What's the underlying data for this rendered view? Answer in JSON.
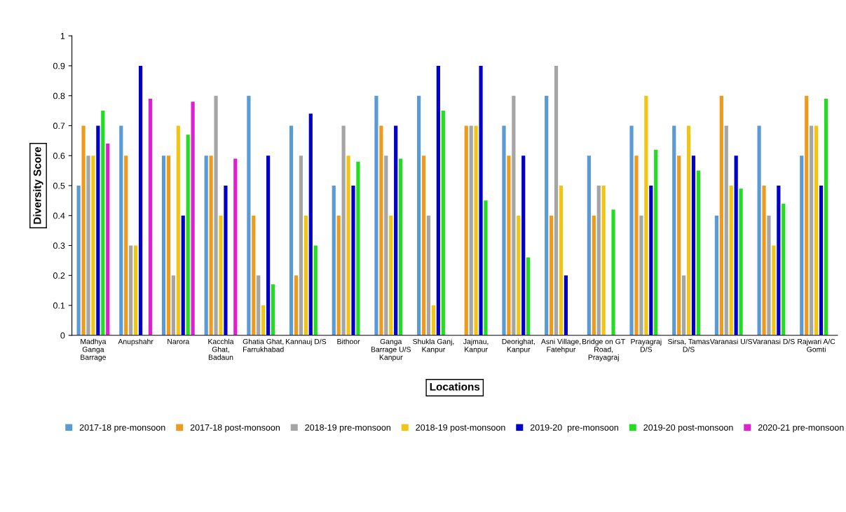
{
  "chart_data": {
    "type": "bar",
    "xlabel": "Locations",
    "ylabel": "Diversity Score",
    "categories": [
      "Madhya\nGanga\nBarrage",
      "Anupshahr",
      "Narora",
      "Kacchla\nGhat,\nBadaun",
      "Ghatia Ghat,\nFarrukhabad",
      "Kannauj D/S",
      "Bithoor",
      "Ganga\nBarrage U/S\nKanpur",
      "Shukla Ganj,\nKanpur",
      "Jajmau,\nKanpur",
      "Deorighat,\nKanpur",
      "Asni Village,\nFatehpur",
      "Bridge on GT\nRoad,\nPrayagraj",
      "Prayagraj\nD/S",
      "Sirsa, Tamas\nD/S",
      "Varanasi U/S",
      "Varanasi D/S",
      "Rajwari A/C\nGomti"
    ],
    "series": [
      {
        "name": "2017-18 pre-monsoon",
        "color": "#5b9bd5",
        "values": [
          0.5,
          0.7,
          0.6,
          0.6,
          0.8,
          0.7,
          0.5,
          0.8,
          0.8,
          null,
          0.7,
          0.8,
          0.6,
          0.7,
          0.7,
          0.4,
          0.7,
          0.6
        ]
      },
      {
        "name": "2017-18 post-monsoon",
        "color": "#ed9a1f",
        "values": [
          0.7,
          0.6,
          0.6,
          0.6,
          0.4,
          0.2,
          0.4,
          0.7,
          0.6,
          0.7,
          0.6,
          0.4,
          0.4,
          0.6,
          0.6,
          0.8,
          0.5,
          0.8
        ]
      },
      {
        "name": "2018-19 pre-monsoon",
        "color": "#a5a5a5",
        "values": [
          0.6,
          0.3,
          0.2,
          0.8,
          0.2,
          0.6,
          0.7,
          0.6,
          0.4,
          0.7,
          0.8,
          0.9,
          0.5,
          0.4,
          0.2,
          0.7,
          0.4,
          0.7
        ]
      },
      {
        "name": "2018-19 post-monsoon",
        "color": "#f2c414",
        "values": [
          0.6,
          0.3,
          0.7,
          0.4,
          0.1,
          0.4,
          0.6,
          0.4,
          0.1,
          0.7,
          0.4,
          0.5,
          0.5,
          0.8,
          0.7,
          0.5,
          0.3,
          0.7
        ]
      },
      {
        "name": "2019-20  pre-monsoon",
        "color": "#0000c8",
        "values": [
          0.7,
          0.9,
          0.4,
          0.5,
          0.6,
          0.74,
          0.5,
          0.7,
          0.9,
          0.9,
          0.6,
          0.2,
          null,
          0.5,
          0.6,
          0.6,
          0.5,
          0.5
        ]
      },
      {
        "name": "2019-20 post-monsoon",
        "color": "#22dd22",
        "values": [
          0.75,
          null,
          0.67,
          null,
          0.17,
          0.3,
          0.58,
          0.59,
          0.75,
          0.45,
          0.26,
          null,
          0.42,
          0.62,
          0.55,
          0.49,
          0.44,
          0.79
        ]
      },
      {
        "name": "2020-21 pre-monsoon",
        "color": "#e020d0",
        "values": [
          0.64,
          0.79,
          0.78,
          0.59,
          null,
          null,
          null,
          null,
          null,
          null,
          null,
          null,
          null,
          null,
          null,
          null,
          null,
          null
        ]
      }
    ],
    "ylim": [
      0,
      1
    ],
    "yticks": [
      0,
      0.1,
      0.2,
      0.3,
      0.4,
      0.5,
      0.6,
      0.7,
      0.8,
      0.9,
      1
    ],
    "grid": false,
    "legend": "bottom"
  }
}
